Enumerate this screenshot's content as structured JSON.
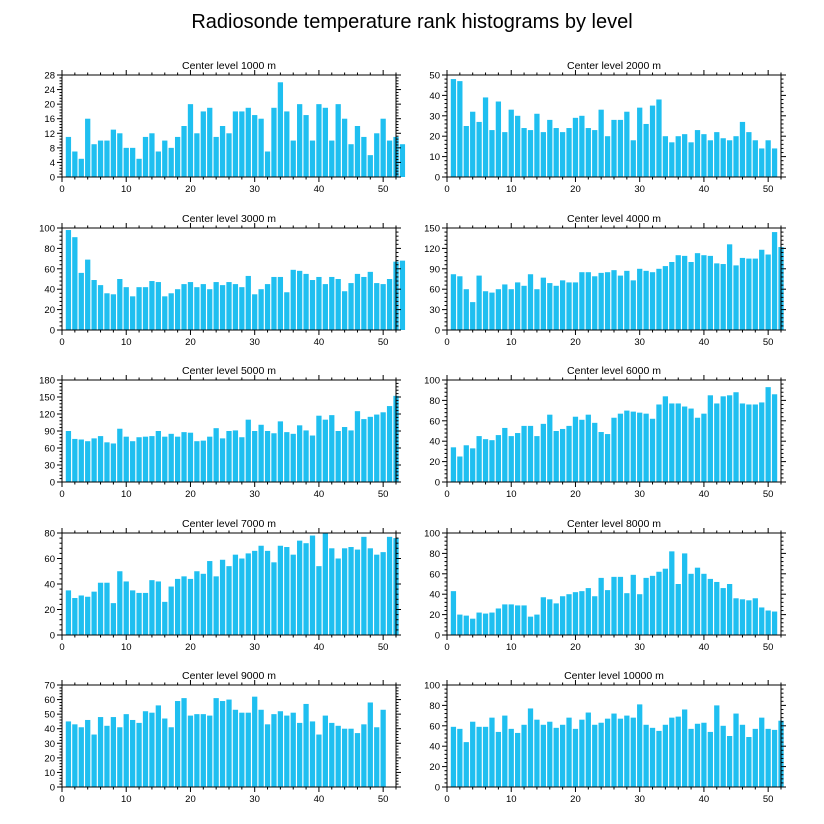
{
  "title": "Radiosonde temperature rank histograms by level",
  "colors": {
    "bar": "#1fbff0",
    "axis": "#000000",
    "background": "#ffffff"
  },
  "chart_data": [
    {
      "type": "bar",
      "title": "Center level 1000 m",
      "xlim": [
        0,
        52
      ],
      "ylim": [
        0,
        28
      ],
      "yticks": [
        0,
        4,
        8,
        12,
        16,
        20,
        24,
        28
      ],
      "xticks": [
        0,
        10,
        20,
        30,
        40,
        50
      ],
      "values": [
        11,
        7,
        5,
        16,
        9,
        10,
        10,
        13,
        12,
        8,
        8,
        5,
        11,
        12,
        7,
        10,
        8,
        11,
        14,
        20,
        12,
        18,
        19,
        11,
        14,
        12,
        18,
        18,
        19,
        17,
        16,
        7,
        19,
        26,
        18,
        10,
        20,
        17,
        10,
        20,
        19,
        10,
        20,
        16,
        9,
        14,
        11,
        6,
        12,
        16,
        10,
        11,
        9
      ]
    },
    {
      "type": "bar",
      "title": "Center level 2000 m",
      "xlim": [
        0,
        52
      ],
      "ylim": [
        0,
        50
      ],
      "yticks": [
        0,
        10,
        20,
        30,
        40,
        50
      ],
      "xticks": [
        0,
        10,
        20,
        30,
        40,
        50
      ],
      "values": [
        48,
        47,
        25,
        32,
        27,
        39,
        23,
        37,
        22,
        33,
        30,
        24,
        23,
        31,
        22,
        28,
        24,
        22,
        24,
        29,
        30,
        24,
        23,
        33,
        20,
        28,
        28,
        32,
        18,
        34,
        26,
        35,
        38,
        20,
        17,
        20,
        21,
        17,
        23,
        21,
        18,
        22,
        19,
        18,
        20,
        27,
        22,
        18,
        14,
        18,
        14
      ]
    },
    {
      "type": "bar",
      "title": "Center level 3000 m",
      "xlim": [
        0,
        52
      ],
      "ylim": [
        0,
        100
      ],
      "yticks": [
        0,
        20,
        40,
        60,
        80,
        100
      ],
      "xticks": [
        0,
        10,
        20,
        30,
        40,
        50
      ],
      "values": [
        98,
        91,
        56,
        69,
        49,
        44,
        36,
        35,
        50,
        42,
        33,
        42,
        42,
        48,
        47,
        33,
        36,
        40,
        45,
        47,
        42,
        45,
        40,
        47,
        44,
        47,
        45,
        42,
        53,
        35,
        40,
        45,
        52,
        52,
        37,
        59,
        58,
        55,
        49,
        52,
        45,
        52,
        50,
        38,
        46,
        55,
        52,
        57,
        46,
        45,
        50,
        67,
        68
      ]
    },
    {
      "type": "bar",
      "title": "Center level 4000 m",
      "xlim": [
        0,
        52
      ],
      "ylim": [
        0,
        150
      ],
      "yticks": [
        0,
        30,
        60,
        90,
        120,
        150
      ],
      "xticks": [
        0,
        10,
        20,
        30,
        40,
        50
      ],
      "values": [
        82,
        79,
        60,
        41,
        80,
        57,
        55,
        60,
        67,
        60,
        70,
        65,
        82,
        60,
        77,
        69,
        65,
        73,
        70,
        70,
        85,
        85,
        79,
        84,
        85,
        88,
        80,
        87,
        73,
        90,
        87,
        85,
        90,
        94,
        100,
        110,
        109,
        100,
        113,
        110,
        109,
        98,
        97,
        126,
        95,
        106,
        105,
        105,
        118,
        111,
        144,
        122
      ]
    },
    {
      "type": "bar",
      "title": "Center level 5000 m",
      "xlim": [
        0,
        52
      ],
      "ylim": [
        0,
        180
      ],
      "yticks": [
        0,
        30,
        60,
        90,
        120,
        150,
        180
      ],
      "xticks": [
        0,
        10,
        20,
        30,
        40,
        50
      ],
      "values": [
        90,
        76,
        75,
        72,
        77,
        81,
        70,
        68,
        94,
        80,
        72,
        79,
        80,
        81,
        90,
        80,
        85,
        80,
        88,
        87,
        72,
        73,
        80,
        95,
        77,
        90,
        91,
        79,
        110,
        90,
        101,
        90,
        86,
        107,
        88,
        85,
        100,
        91,
        82,
        117,
        110,
        118,
        90,
        97,
        91,
        125,
        111,
        115,
        119,
        123,
        134,
        152
      ]
    },
    {
      "type": "bar",
      "title": "Center level 6000 m",
      "xlim": [
        0,
        52
      ],
      "ylim": [
        0,
        100
      ],
      "yticks": [
        0,
        20,
        40,
        60,
        80,
        100
      ],
      "xticks": [
        0,
        10,
        20,
        30,
        40,
        50
      ],
      "values": [
        34,
        25,
        36,
        33,
        45,
        42,
        41,
        46,
        53,
        45,
        48,
        55,
        55,
        45,
        57,
        66,
        50,
        52,
        55,
        64,
        61,
        66,
        58,
        49,
        47,
        63,
        67,
        70,
        69,
        68,
        67,
        62,
        76,
        84,
        77,
        77,
        74,
        72,
        63,
        67,
        85,
        77,
        84,
        85,
        88,
        77,
        76,
        76,
        78,
        93,
        86
      ]
    },
    {
      "type": "bar",
      "title": "Center level 7000 m",
      "xlim": [
        0,
        52
      ],
      "ylim": [
        0,
        80
      ],
      "yticks": [
        0,
        20,
        40,
        60,
        80
      ],
      "xticks": [
        0,
        10,
        20,
        30,
        40,
        50
      ],
      "values": [
        35,
        29,
        31,
        30,
        34,
        41,
        41,
        25,
        50,
        42,
        35,
        33,
        33,
        43,
        42,
        26,
        38,
        44,
        46,
        44,
        50,
        48,
        58,
        46,
        59,
        54,
        63,
        60,
        64,
        66,
        70,
        66,
        57,
        70,
        69,
        63,
        74,
        72,
        78,
        54,
        80,
        68,
        60,
        68,
        69,
        67,
        77,
        68,
        63,
        65,
        77,
        76
      ]
    },
    {
      "type": "bar",
      "title": "Center level 8000 m",
      "xlim": [
        0,
        52
      ],
      "ylim": [
        0,
        100
      ],
      "yticks": [
        0,
        20,
        40,
        60,
        80,
        100
      ],
      "xticks": [
        0,
        10,
        20,
        30,
        40,
        50
      ],
      "values": [
        43,
        20,
        19,
        16,
        22,
        21,
        22,
        26,
        30,
        30,
        29,
        29,
        18,
        20,
        37,
        35,
        31,
        38,
        40,
        42,
        43,
        46,
        38,
        56,
        44,
        57,
        57,
        41,
        59,
        40,
        56,
        58,
        62,
        65,
        82,
        50,
        80,
        60,
        66,
        60,
        55,
        52,
        46,
        50,
        36,
        35,
        34,
        36,
        27,
        24,
        23
      ]
    },
    {
      "type": "bar",
      "title": "Center level 9000 m",
      "xlim": [
        0,
        52
      ],
      "ylim": [
        0,
        70
      ],
      "yticks": [
        0,
        10,
        20,
        30,
        40,
        50,
        60,
        70
      ],
      "xticks": [
        0,
        10,
        20,
        30,
        40,
        50
      ],
      "values": [
        45,
        43,
        41,
        46,
        36,
        48,
        42,
        48,
        41,
        50,
        46,
        44,
        52,
        51,
        56,
        47,
        41,
        59,
        61,
        49,
        50,
        50,
        49,
        61,
        59,
        60,
        53,
        51,
        51,
        62,
        53,
        43,
        50,
        52,
        49,
        51,
        44,
        57,
        45,
        36,
        49,
        44,
        42,
        40,
        40,
        37,
        43,
        58,
        41,
        53
      ]
    },
    {
      "type": "bar",
      "title": "Center level 10000 m",
      "xlim": [
        0,
        52
      ],
      "ylim": [
        0,
        100
      ],
      "yticks": [
        0,
        20,
        40,
        60,
        80,
        100
      ],
      "xticks": [
        0,
        10,
        20,
        30,
        40,
        50
      ],
      "values": [
        59,
        57,
        44,
        64,
        59,
        59,
        68,
        54,
        70,
        57,
        53,
        61,
        77,
        66,
        61,
        64,
        58,
        61,
        68,
        57,
        66,
        73,
        61,
        63,
        67,
        72,
        67,
        70,
        68,
        81,
        61,
        58,
        55,
        61,
        68,
        69,
        76,
        57,
        62,
        63,
        54,
        80,
        60,
        50,
        72,
        61,
        49,
        57,
        68,
        57,
        56,
        65
      ]
    }
  ]
}
